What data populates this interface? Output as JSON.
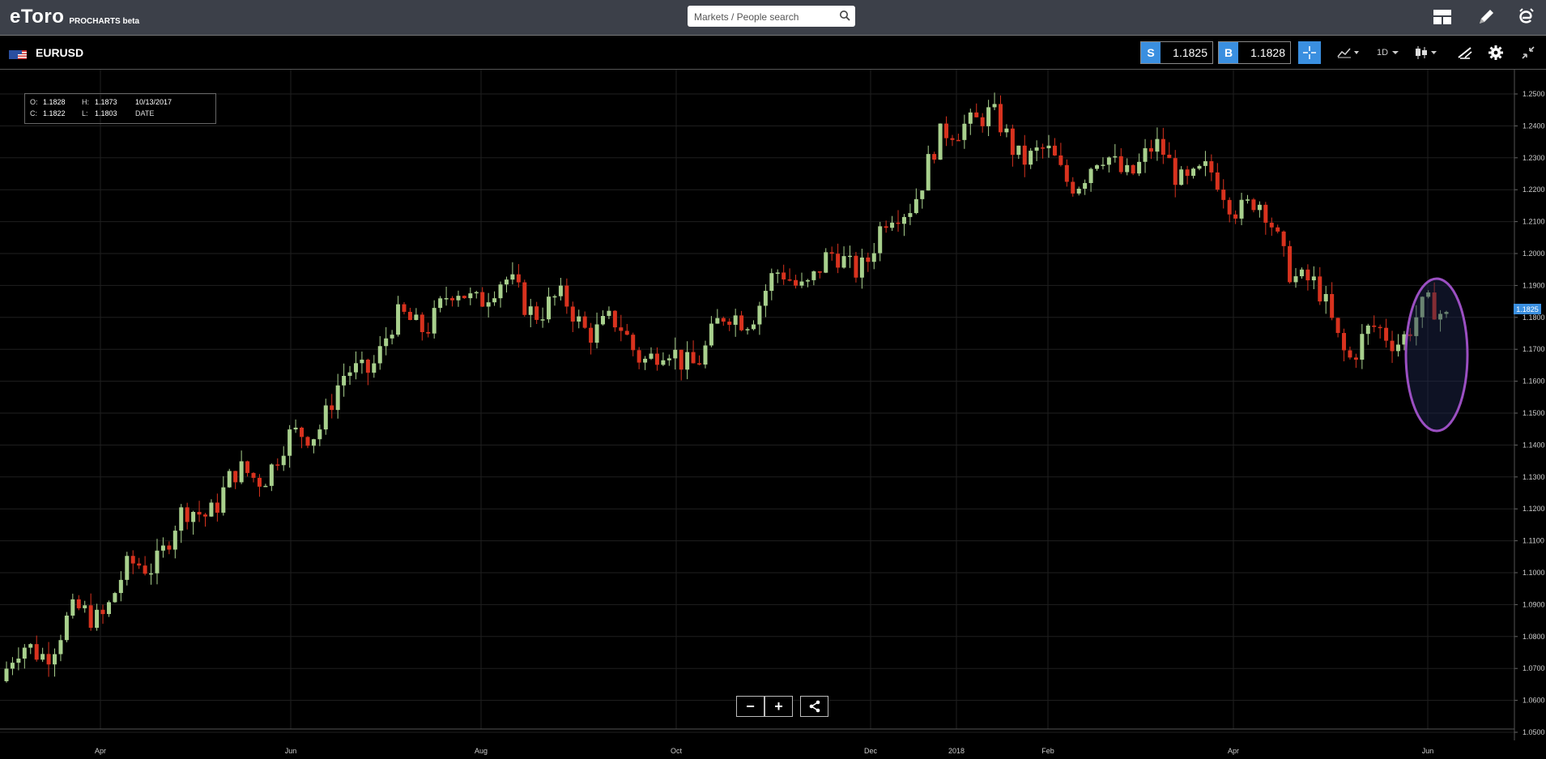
{
  "app": {
    "logo_text": "eToro",
    "logo_sub": "PROCHARTS beta",
    "search_placeholder": "Markets / People search"
  },
  "instrument": {
    "symbol": "EURUSD",
    "sell_label": "S",
    "sell_price": "1.1825",
    "buy_label": "B",
    "buy_price": "1.1828",
    "timeframe": "1D"
  },
  "ohlc": {
    "o_label": "O:",
    "o_value": "1.1828",
    "h_label": "H:",
    "h_value": "1.1873",
    "c_label": "C:",
    "c_value": "1.1822",
    "l_label": "L:",
    "l_value": "1.1803",
    "date": "10/13/2017",
    "date_label": "DATE"
  },
  "toolbar": {
    "zoom_out": "−",
    "zoom_in": "+"
  },
  "colors": {
    "up": "#a8d08d",
    "down": "#d8321e",
    "accent": "#3a8fe0",
    "highlight": "#9b4fc2"
  },
  "chart_data": {
    "type": "candlestick",
    "instrument": "EURUSD",
    "interval": "1D",
    "x_ticks": [
      "Apr",
      "Jun",
      "Aug",
      "Oct",
      "Dec",
      "2018",
      "Feb",
      "Apr",
      "Jun"
    ],
    "y_ticks": [
      "1.2500",
      "1.2400",
      "1.2300",
      "1.2200",
      "1.2100",
      "1.2000",
      "1.1900",
      "1.1800",
      "1.1700",
      "1.1600",
      "1.1500",
      "1.1400",
      "1.1300",
      "1.1200",
      "1.1100",
      "1.1000",
      "1.0900",
      "1.0800",
      "1.0700",
      "1.0600",
      "1.0500"
    ],
    "ylim": [
      1.048,
      1.258
    ],
    "current_price_label": "1.1825",
    "grid": true,
    "monthly_path": [
      {
        "month": "2017-03",
        "close": 1.07
      },
      {
        "month": "2017-04",
        "close": 1.09
      },
      {
        "month": "2017-05",
        "close": 1.12
      },
      {
        "month": "2017-06",
        "close": 1.14
      },
      {
        "month": "2017-07",
        "close": 1.175
      },
      {
        "month": "2017-08",
        "close": 1.19
      },
      {
        "month": "2017-09",
        "close": 1.18
      },
      {
        "month": "2017-10",
        "close": 1.165
      },
      {
        "month": "2017-11",
        "close": 1.19
      },
      {
        "month": "2017-12",
        "close": 1.2
      },
      {
        "month": "2018-01",
        "close": 1.245
      },
      {
        "month": "2018-02",
        "close": 1.225
      },
      {
        "month": "2018-03",
        "close": 1.23
      },
      {
        "month": "2018-04",
        "close": 1.215
      },
      {
        "month": "2018-05",
        "close": 1.17
      },
      {
        "month": "2018-06",
        "close": 1.1825
      }
    ]
  }
}
